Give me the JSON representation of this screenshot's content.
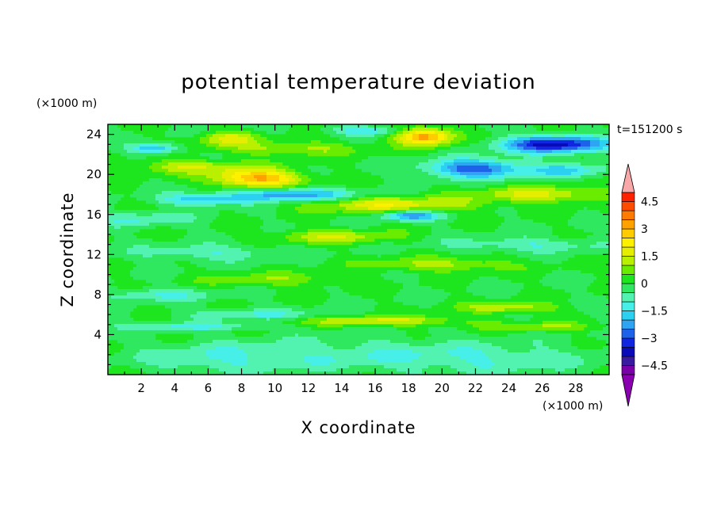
{
  "chart_data": {
    "type": "heatmap",
    "title": "potential temperature deviation",
    "xlabel": "X coordinate",
    "ylabel": "Z coordinate",
    "x_unit": "(×1000 m)",
    "y_unit": "(×1000 m)",
    "time_label": "t=151200 s",
    "xlim": [
      0,
      30
    ],
    "ylim": [
      0,
      25
    ],
    "x_ticks": [
      "2",
      "4",
      "6",
      "8",
      "10",
      "12",
      "14",
      "16",
      "18",
      "20",
      "22",
      "24",
      "26",
      "28"
    ],
    "y_ticks": [
      "4",
      "8",
      "12",
      "16",
      "20",
      "24"
    ],
    "colorbar": {
      "levels": [
        -5.0,
        -4.5,
        -4.0,
        -3.5,
        -3.0,
        -2.5,
        -2.0,
        -1.5,
        -1.0,
        -0.5,
        0.0,
        0.5,
        1.0,
        1.5,
        2.0,
        2.5,
        3.0,
        3.5,
        4.0,
        4.5,
        5.0
      ],
      "labels": [
        "4.5",
        "3",
        "1.5",
        "0",
        "−1.5",
        "−3",
        "−4.5"
      ],
      "label_values": [
        4.5,
        3.0,
        1.5,
        0.0,
        -1.5,
        -3.0,
        -4.5
      ],
      "colors": [
        "#7a00a8",
        "#3a1aa0",
        "#0a0ab8",
        "#1026e0",
        "#1e62ea",
        "#2ea4f2",
        "#2cd0f0",
        "#46f0e8",
        "#52f2b0",
        "#30e860",
        "#1ee61e",
        "#6aec00",
        "#b8f000",
        "#e6ee00",
        "#fff000",
        "#ffcc00",
        "#ffa200",
        "#ff7a00",
        "#ff4c00",
        "#ff2200"
      ],
      "over_color": "#f8a8a8",
      "under_color": "#8a00b0"
    },
    "features": [
      {
        "x": 7.2,
        "z": 23.6,
        "sx": 1.2,
        "sz": 0.5,
        "amp": 1.6
      },
      {
        "x": 2.8,
        "z": 22.6,
        "sx": 1.0,
        "sz": 0.35,
        "amp": -2.2
      },
      {
        "x": 19.0,
        "z": 23.8,
        "sx": 1.2,
        "sz": 0.6,
        "amp": 3.4
      },
      {
        "x": 26.8,
        "z": 23.0,
        "sx": 2.2,
        "sz": 0.6,
        "amp": -3.8
      },
      {
        "x": 15.5,
        "z": 24.4,
        "sx": 1.5,
        "sz": 0.35,
        "amp": -1.5
      },
      {
        "x": 11.0,
        "z": 22.6,
        "sx": 3.0,
        "sz": 0.5,
        "amp": 1.2
      },
      {
        "x": 9.0,
        "z": 19.6,
        "sx": 1.8,
        "sz": 0.65,
        "amp": 3.2
      },
      {
        "x": 22.0,
        "z": 20.6,
        "sx": 2.0,
        "sz": 0.65,
        "amp": -3.0
      },
      {
        "x": 5.0,
        "z": 20.8,
        "sx": 2.5,
        "sz": 0.5,
        "amp": 1.4
      },
      {
        "x": 27.5,
        "z": 20.4,
        "sx": 1.5,
        "sz": 0.5,
        "amp": -1.6
      },
      {
        "x": 11.0,
        "z": 18.0,
        "sx": 2.4,
        "sz": 0.45,
        "amp": -2.6
      },
      {
        "x": 5.8,
        "z": 17.5,
        "sx": 1.8,
        "sz": 0.4,
        "amp": -2.0
      },
      {
        "x": 17.0,
        "z": 17.0,
        "sx": 3.5,
        "sz": 0.55,
        "amp": 1.8
      },
      {
        "x": 26.0,
        "z": 18.0,
        "sx": 3.0,
        "sz": 0.55,
        "amp": 1.6
      },
      {
        "x": 18.2,
        "z": 15.9,
        "sx": 1.2,
        "sz": 0.35,
        "amp": -2.5
      },
      {
        "x": 2.0,
        "z": 15.5,
        "sx": 2.0,
        "sz": 0.5,
        "amp": -1.0
      },
      {
        "x": 13.5,
        "z": 13.8,
        "sx": 2.5,
        "sz": 0.5,
        "amp": 1.4
      },
      {
        "x": 25.0,
        "z": 13.0,
        "sx": 3.5,
        "sz": 0.5,
        "amp": -1.0
      },
      {
        "x": 6.0,
        "z": 12.2,
        "sx": 3.0,
        "sz": 0.55,
        "amp": -1.0
      },
      {
        "x": 20.0,
        "z": 11.0,
        "sx": 3.0,
        "sz": 0.5,
        "amp": 1.2
      },
      {
        "x": 10.0,
        "z": 9.5,
        "sx": 3.0,
        "sz": 0.5,
        "amp": 0.9
      },
      {
        "x": 3.0,
        "z": 8.0,
        "sx": 2.5,
        "sz": 0.45,
        "amp": -1.0
      },
      {
        "x": 24.0,
        "z": 6.7,
        "sx": 2.0,
        "sz": 0.4,
        "amp": 1.4
      },
      {
        "x": 16.5,
        "z": 5.4,
        "sx": 3.5,
        "sz": 0.35,
        "amp": 1.6
      },
      {
        "x": 9.0,
        "z": 6.0,
        "sx": 3.0,
        "sz": 0.4,
        "amp": -1.0
      },
      {
        "x": 5.0,
        "z": 4.8,
        "sx": 3.0,
        "sz": 0.25,
        "amp": -1.2
      },
      {
        "x": 26.0,
        "z": 4.8,
        "sx": 2.5,
        "sz": 0.3,
        "amp": 1.0
      },
      {
        "x": 15.0,
        "z": 2.0,
        "sx": 6.0,
        "sz": 1.2,
        "amp": -0.9
      },
      {
        "x": 6.0,
        "z": 1.6,
        "sx": 3.0,
        "sz": 1.0,
        "amp": -0.8
      },
      {
        "x": 24.0,
        "z": 1.5,
        "sx": 4.0,
        "sz": 1.0,
        "amp": -0.7
      }
    ]
  }
}
